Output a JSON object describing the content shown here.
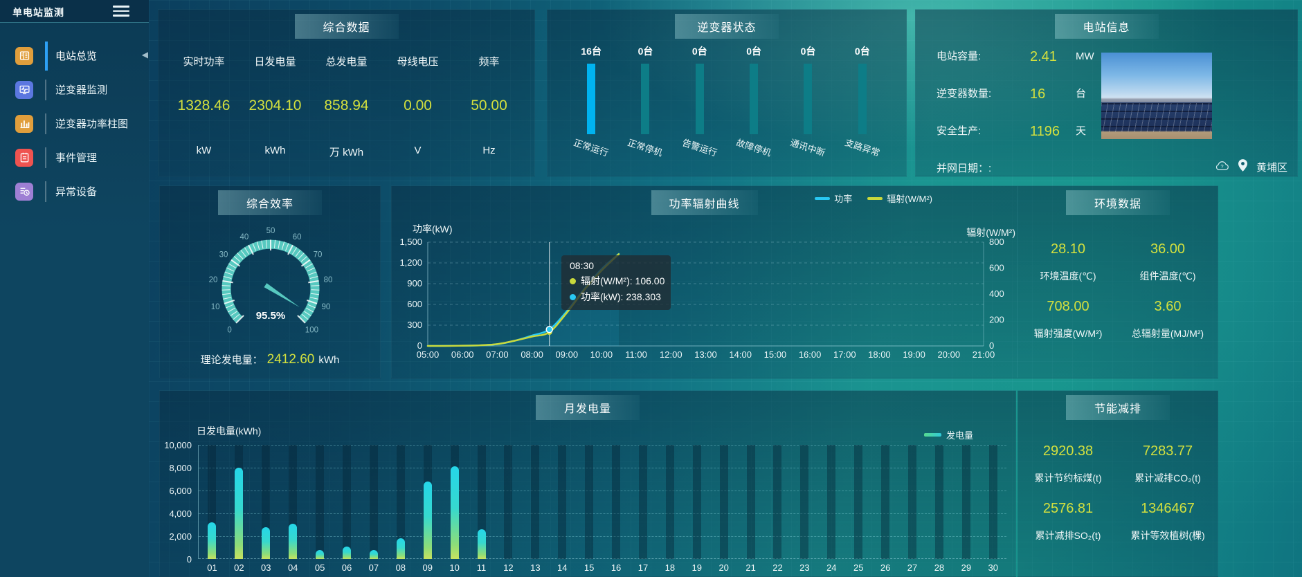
{
  "app": {
    "title": "单电站监测"
  },
  "sidebar": {
    "items": [
      {
        "key": "overview",
        "label": "电站总览",
        "icon": "station-overview-icon",
        "color": "#e09e3c",
        "active": true
      },
      {
        "key": "inverter-monitor",
        "label": "逆变器监测",
        "icon": "inverter-monitor-icon",
        "color": "#5b77e0",
        "active": false
      },
      {
        "key": "inverter-power",
        "label": "逆变器功率柱图",
        "icon": "inverter-power-bars-icon",
        "color": "#e09e3c",
        "active": false
      },
      {
        "key": "events",
        "label": "事件管理",
        "icon": "event-management-icon",
        "color": "#ef5350",
        "active": false
      },
      {
        "key": "abnormal",
        "label": "异常设备",
        "icon": "abnormal-device-icon",
        "color": "#9e7fd4",
        "active": false
      }
    ]
  },
  "panels": {
    "summary": {
      "title": "综合数据",
      "stats": [
        {
          "label": "实时功率",
          "value": "1328.46",
          "unit": "kW"
        },
        {
          "label": "日发电量",
          "value": "2304.10",
          "unit": "kWh"
        },
        {
          "label": "总发电量",
          "value": "858.94",
          "unit": "万 kWh"
        },
        {
          "label": "母线电压",
          "value": "0.00",
          "unit": "V"
        },
        {
          "label": "频率",
          "value": "50.00",
          "unit": "Hz"
        }
      ]
    },
    "inverter_status": {
      "title": "逆变器状态"
    },
    "station_info": {
      "title": "电站信息",
      "rows": [
        {
          "label": "电站容量:",
          "value": "2.41",
          "unit": "MW"
        },
        {
          "label": "逆变器数量:",
          "value": "16",
          "unit": "台"
        },
        {
          "label": "安全生产:",
          "value": "1196",
          "unit": "天"
        },
        {
          "label": "并网日期：:",
          "value": "",
          "unit": ""
        }
      ],
      "location": "黄埔区"
    },
    "efficiency": {
      "title": "综合效率",
      "theory_label": "理论发电量：",
      "theory_value": "2412.60",
      "theory_unit": "kWh"
    },
    "power_radiation": {
      "title": "功率辐射曲线"
    },
    "environment": {
      "title": "环境数据",
      "stats": [
        {
          "value": "28.10",
          "label": "环境温度(℃)"
        },
        {
          "value": "36.00",
          "label": "组件温度(℃)"
        },
        {
          "value": "708.00",
          "label": "辐射强度(W/M²)"
        },
        {
          "value": "3.60",
          "label": "总辐射量(MJ/M²)"
        }
      ]
    },
    "monthly_generation": {
      "title": "月发电量"
    },
    "energy_saving": {
      "title": "节能减排",
      "stats": [
        {
          "value": "2920.38",
          "label": "累计节约标煤(t)"
        },
        {
          "value": "7283.77",
          "label": "累计减排CO₂(t)"
        },
        {
          "value": "2576.81",
          "label": "累计减排SO₂(t)"
        },
        {
          "value": "1346467",
          "label": "累计等效植树(棵)"
        }
      ]
    }
  },
  "chart_data": [
    {
      "id": "efficiency-gauge",
      "type": "gauge",
      "title": "综合效率",
      "min": 0,
      "max": 100,
      "value": 95.5,
      "display": "95.5%",
      "tick_step": 10,
      "color": "#57c9c0"
    },
    {
      "id": "power-radiation",
      "type": "line",
      "title": "功率辐射曲线",
      "x": [
        "05:00",
        "05:30",
        "06:00",
        "06:30",
        "07:00",
        "07:30",
        "08:00",
        "08:30",
        "09:00",
        "09:30",
        "10:00",
        "10:30"
      ],
      "x_axis_labels": [
        "05:00",
        "06:00",
        "07:00",
        "08:00",
        "09:00",
        "10:00",
        "11:00",
        "12:00",
        "13:00",
        "14:00",
        "15:00",
        "16:00",
        "17:00",
        "18:00",
        "19:00",
        "20:00",
        "21:00"
      ],
      "series": [
        {
          "name": "功率",
          "axis": "left",
          "color": "#29c8f2",
          "values": [
            0,
            1,
            3,
            8,
            25,
            75,
            150,
            238.3,
            500,
            820,
            1110,
            1330
          ]
        },
        {
          "name": "辐射(W/M²)",
          "axis": "right",
          "color": "#c9d93c",
          "values": [
            0,
            0,
            2,
            5,
            14,
            40,
            72,
            106,
            255,
            430,
            580,
            708
          ]
        }
      ],
      "left_axis": {
        "label": "功率(kW)",
        "max": 1500,
        "ticks": [
          "0",
          "300",
          "600",
          "900",
          "1,200",
          "1,500"
        ]
      },
      "right_axis": {
        "label": "辐射(W/M²)",
        "max": 800,
        "ticks": [
          "0",
          "200",
          "400",
          "600",
          "800"
        ]
      },
      "pointer_time": "08:30",
      "tooltip": {
        "time": "08:30",
        "rows": [
          {
            "label": "辐射(W/M²)",
            "value": "106.00",
            "color": "#c9d93c"
          },
          {
            "label": "功率(kW)",
            "value": "238.303",
            "color": "#29c8f2"
          }
        ]
      }
    },
    {
      "id": "monthly-generation",
      "type": "bar",
      "title": "月发电量",
      "ylabel": "日发电量(kWh)",
      "legend": "发电量",
      "categories": [
        "01",
        "02",
        "03",
        "04",
        "05",
        "06",
        "07",
        "08",
        "09",
        "10",
        "11",
        "12",
        "13",
        "14",
        "15",
        "16",
        "17",
        "18",
        "19",
        "20",
        "21",
        "22",
        "23",
        "24",
        "25",
        "26",
        "27",
        "28",
        "29",
        "30"
      ],
      "values": [
        3200,
        8000,
        2800,
        3100,
        800,
        1100,
        800,
        1800,
        6800,
        8100,
        2600,
        0,
        0,
        0,
        0,
        0,
        0,
        0,
        0,
        0,
        0,
        0,
        0,
        0,
        0,
        0,
        0,
        0,
        0,
        0
      ],
      "ylim": [
        0,
        10000
      ],
      "y_ticks": [
        "0",
        "2,000",
        "4,000",
        "6,000",
        "8,000",
        "10,000"
      ]
    },
    {
      "id": "inverter-status",
      "type": "bar",
      "title": "逆变器状态",
      "unit": "台",
      "categories": [
        "正常运行",
        "正常停机",
        "告警运行",
        "故障停机",
        "通讯中断",
        "支路异常"
      ],
      "values": [
        16,
        0,
        0,
        0,
        0,
        0
      ],
      "highlight_color": "#00b3f0",
      "base_color": "#0d7d87"
    }
  ]
}
